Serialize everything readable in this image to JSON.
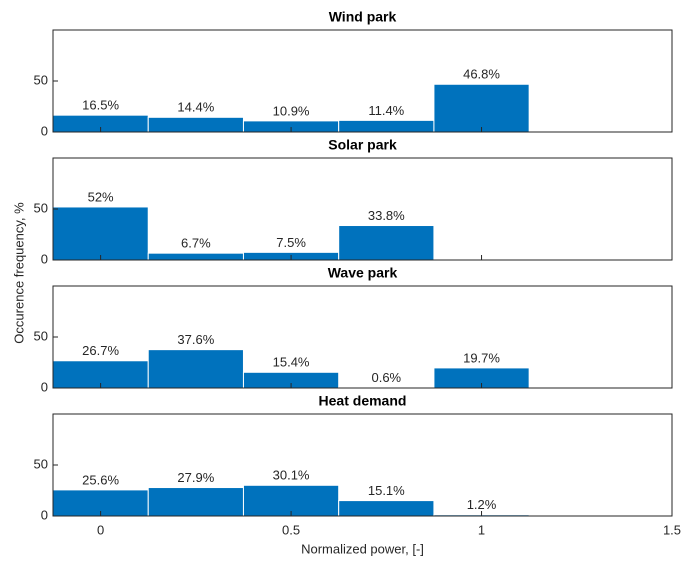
{
  "ylabel": "Occurence frequency, %",
  "chart_data": [
    {
      "type": "histogram",
      "title": "Wind park",
      "bins": [
        -0.125,
        0.125,
        0.375,
        0.625,
        0.875,
        1.125
      ],
      "values": [
        16.5,
        14.4,
        10.9,
        11.4,
        46.8
      ],
      "value_labels": [
        "16.5%",
        "14.4%",
        "10.9%",
        "11.4%",
        "46.8%"
      ],
      "color": "#0072bd",
      "xlim": [
        -0.125,
        1.5
      ],
      "ylim": [
        0,
        100
      ],
      "yticks": [
        0,
        50
      ]
    },
    {
      "type": "histogram",
      "title": "Solar park",
      "bins": [
        -0.125,
        0.125,
        0.375,
        0.625,
        0.875
      ],
      "values": [
        52,
        6.7,
        7.5,
        33.8
      ],
      "value_labels": [
        "52%",
        "6.7%",
        "7.5%",
        "33.8%"
      ],
      "color": "#0072bd",
      "xlim": [
        -0.125,
        1.5
      ],
      "ylim": [
        0,
        100
      ],
      "yticks": [
        0,
        50
      ]
    },
    {
      "type": "histogram",
      "title": "Wave park",
      "bins": [
        -0.125,
        0.125,
        0.375,
        0.625,
        0.875,
        1.125
      ],
      "values": [
        26.7,
        37.6,
        15.4,
        0.6,
        19.7
      ],
      "value_labels": [
        "26.7%",
        "37.6%",
        "15.4%",
        "0.6%",
        "19.7%"
      ],
      "color": "#0072bd",
      "xlim": [
        -0.125,
        1.5
      ],
      "ylim": [
        0,
        100
      ],
      "yticks": [
        0,
        50
      ]
    },
    {
      "type": "histogram",
      "title": "Heat demand",
      "bins": [
        -0.125,
        0.125,
        0.375,
        0.625,
        0.875,
        1.125
      ],
      "values": [
        25.6,
        27.9,
        30.1,
        15.1,
        1.2
      ],
      "value_labels": [
        "25.6%",
        "27.9%",
        "30.1%",
        "15.1%",
        "1.2%"
      ],
      "color": "#0072bd",
      "xlim": [
        -0.125,
        1.5
      ],
      "ylim": [
        0,
        100
      ],
      "yticks": [
        0,
        50
      ],
      "xticks": [
        0,
        0.5,
        1,
        1.5
      ],
      "xlabel": "Normalized power, [-]"
    }
  ]
}
